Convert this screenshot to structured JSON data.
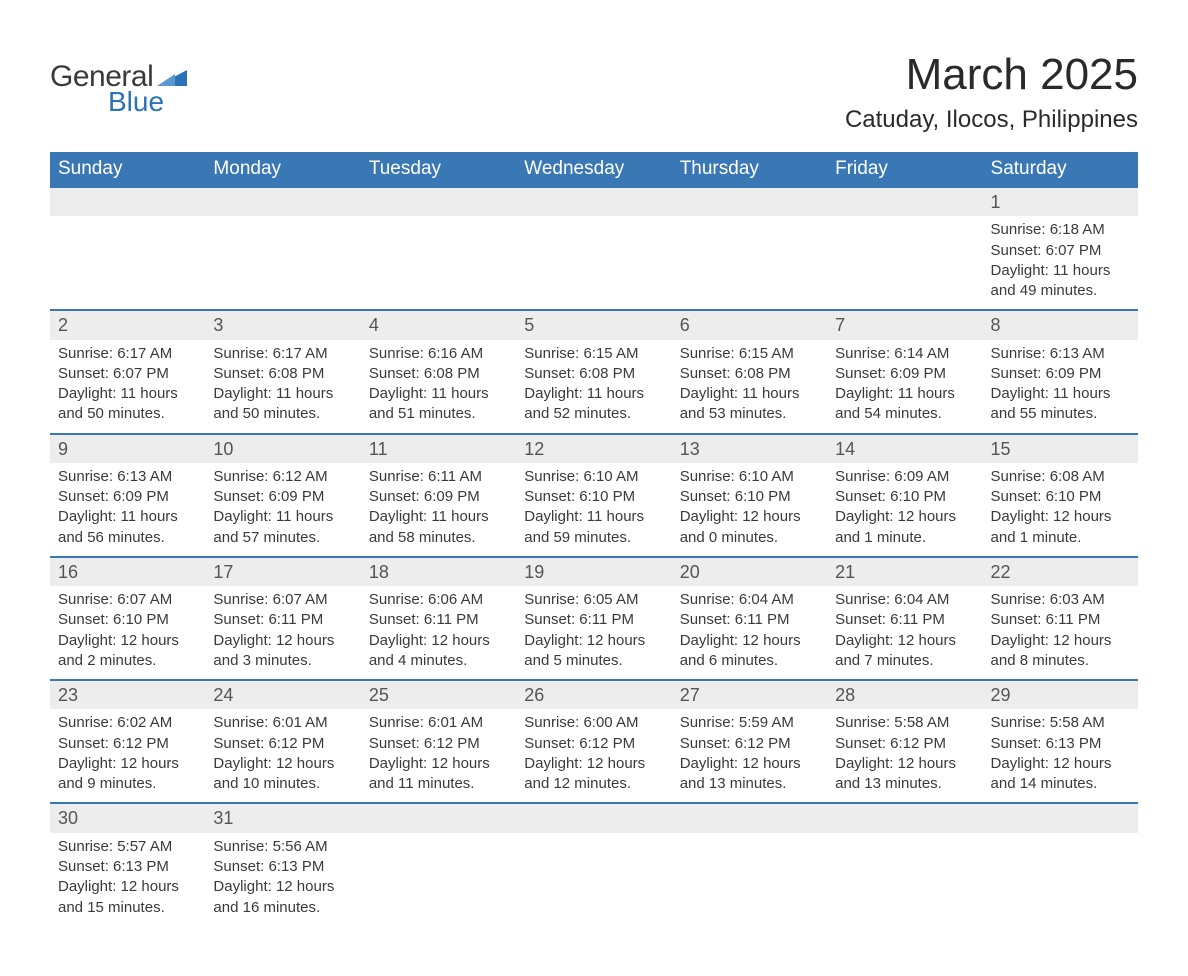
{
  "logo": {
    "text1": "General",
    "text2": "Blue",
    "shape_color": "#2b72b8"
  },
  "title": "March 2025",
  "location": "Catuday, Ilocos, Philippines",
  "colors": {
    "header_bg": "#3a77b5",
    "header_text": "#ffffff",
    "row_divider": "#3a77b5",
    "daynum_bg": "#ededed",
    "body_text": "#3a3a3a",
    "page_bg": "#ffffff"
  },
  "typography": {
    "title_fontsize": 44,
    "location_fontsize": 24,
    "dayheader_fontsize": 19,
    "daynum_fontsize": 18,
    "detail_fontsize": 15,
    "font_family": "Arial"
  },
  "layout": {
    "columns": 7,
    "rows": 6,
    "start_day_index": 6
  },
  "day_headers": [
    "Sunday",
    "Monday",
    "Tuesday",
    "Wednesday",
    "Thursday",
    "Friday",
    "Saturday"
  ],
  "labels": {
    "sunrise": "Sunrise:",
    "sunset": "Sunset:",
    "daylight": "Daylight:"
  },
  "weeks": [
    [
      null,
      null,
      null,
      null,
      null,
      null,
      {
        "n": "1",
        "sunrise": "6:18 AM",
        "sunset": "6:07 PM",
        "daylight": "11 hours and 49 minutes."
      }
    ],
    [
      {
        "n": "2",
        "sunrise": "6:17 AM",
        "sunset": "6:07 PM",
        "daylight": "11 hours and 50 minutes."
      },
      {
        "n": "3",
        "sunrise": "6:17 AM",
        "sunset": "6:08 PM",
        "daylight": "11 hours and 50 minutes."
      },
      {
        "n": "4",
        "sunrise": "6:16 AM",
        "sunset": "6:08 PM",
        "daylight": "11 hours and 51 minutes."
      },
      {
        "n": "5",
        "sunrise": "6:15 AM",
        "sunset": "6:08 PM",
        "daylight": "11 hours and 52 minutes."
      },
      {
        "n": "6",
        "sunrise": "6:15 AM",
        "sunset": "6:08 PM",
        "daylight": "11 hours and 53 minutes."
      },
      {
        "n": "7",
        "sunrise": "6:14 AM",
        "sunset": "6:09 PM",
        "daylight": "11 hours and 54 minutes."
      },
      {
        "n": "8",
        "sunrise": "6:13 AM",
        "sunset": "6:09 PM",
        "daylight": "11 hours and 55 minutes."
      }
    ],
    [
      {
        "n": "9",
        "sunrise": "6:13 AM",
        "sunset": "6:09 PM",
        "daylight": "11 hours and 56 minutes."
      },
      {
        "n": "10",
        "sunrise": "6:12 AM",
        "sunset": "6:09 PM",
        "daylight": "11 hours and 57 minutes."
      },
      {
        "n": "11",
        "sunrise": "6:11 AM",
        "sunset": "6:09 PM",
        "daylight": "11 hours and 58 minutes."
      },
      {
        "n": "12",
        "sunrise": "6:10 AM",
        "sunset": "6:10 PM",
        "daylight": "11 hours and 59 minutes."
      },
      {
        "n": "13",
        "sunrise": "6:10 AM",
        "sunset": "6:10 PM",
        "daylight": "12 hours and 0 minutes."
      },
      {
        "n": "14",
        "sunrise": "6:09 AM",
        "sunset": "6:10 PM",
        "daylight": "12 hours and 1 minute."
      },
      {
        "n": "15",
        "sunrise": "6:08 AM",
        "sunset": "6:10 PM",
        "daylight": "12 hours and 1 minute."
      }
    ],
    [
      {
        "n": "16",
        "sunrise": "6:07 AM",
        "sunset": "6:10 PM",
        "daylight": "12 hours and 2 minutes."
      },
      {
        "n": "17",
        "sunrise": "6:07 AM",
        "sunset": "6:11 PM",
        "daylight": "12 hours and 3 minutes."
      },
      {
        "n": "18",
        "sunrise": "6:06 AM",
        "sunset": "6:11 PM",
        "daylight": "12 hours and 4 minutes."
      },
      {
        "n": "19",
        "sunrise": "6:05 AM",
        "sunset": "6:11 PM",
        "daylight": "12 hours and 5 minutes."
      },
      {
        "n": "20",
        "sunrise": "6:04 AM",
        "sunset": "6:11 PM",
        "daylight": "12 hours and 6 minutes."
      },
      {
        "n": "21",
        "sunrise": "6:04 AM",
        "sunset": "6:11 PM",
        "daylight": "12 hours and 7 minutes."
      },
      {
        "n": "22",
        "sunrise": "6:03 AM",
        "sunset": "6:11 PM",
        "daylight": "12 hours and 8 minutes."
      }
    ],
    [
      {
        "n": "23",
        "sunrise": "6:02 AM",
        "sunset": "6:12 PM",
        "daylight": "12 hours and 9 minutes."
      },
      {
        "n": "24",
        "sunrise": "6:01 AM",
        "sunset": "6:12 PM",
        "daylight": "12 hours and 10 minutes."
      },
      {
        "n": "25",
        "sunrise": "6:01 AM",
        "sunset": "6:12 PM",
        "daylight": "12 hours and 11 minutes."
      },
      {
        "n": "26",
        "sunrise": "6:00 AM",
        "sunset": "6:12 PM",
        "daylight": "12 hours and 12 minutes."
      },
      {
        "n": "27",
        "sunrise": "5:59 AM",
        "sunset": "6:12 PM",
        "daylight": "12 hours and 13 minutes."
      },
      {
        "n": "28",
        "sunrise": "5:58 AM",
        "sunset": "6:12 PM",
        "daylight": "12 hours and 13 minutes."
      },
      {
        "n": "29",
        "sunrise": "5:58 AM",
        "sunset": "6:13 PM",
        "daylight": "12 hours and 14 minutes."
      }
    ],
    [
      {
        "n": "30",
        "sunrise": "5:57 AM",
        "sunset": "6:13 PM",
        "daylight": "12 hours and 15 minutes."
      },
      {
        "n": "31",
        "sunrise": "5:56 AM",
        "sunset": "6:13 PM",
        "daylight": "12 hours and 16 minutes."
      },
      null,
      null,
      null,
      null,
      null
    ]
  ]
}
